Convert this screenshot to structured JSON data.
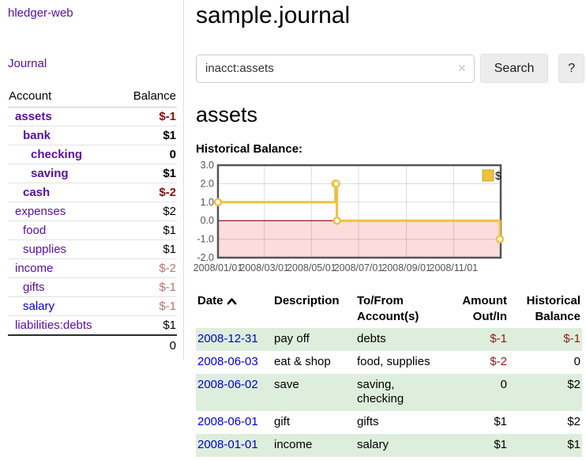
{
  "app": {
    "title": "hledger-web"
  },
  "sidebar": {
    "journal_link": "Journal",
    "accounts_table": {
      "headers": {
        "account": "Account",
        "balance": "Balance"
      },
      "rows": [
        {
          "name": "assets",
          "indent": 1,
          "bold": true,
          "balance": "$-1",
          "balance_style": "neg-strong"
        },
        {
          "name": "bank",
          "indent": 2,
          "bold": true,
          "balance": "$1",
          "balance_style": "pos"
        },
        {
          "name": "checking",
          "indent": 3,
          "bold": true,
          "balance": "0",
          "balance_style": "pos"
        },
        {
          "name": "saving",
          "indent": 3,
          "bold": true,
          "balance": "$1",
          "balance_style": "pos"
        },
        {
          "name": "cash",
          "indent": 2,
          "bold": true,
          "balance": "$-2",
          "balance_style": "neg-strong"
        },
        {
          "name": "expenses",
          "indent": 1,
          "bold": false,
          "balance": "$2",
          "balance_style": "pos"
        },
        {
          "name": "food",
          "indent": 2,
          "bold": false,
          "balance": "$1",
          "balance_style": "pos"
        },
        {
          "name": "supplies",
          "indent": 2,
          "bold": false,
          "balance": "$1",
          "balance_style": "pos"
        },
        {
          "name": "income",
          "indent": 1,
          "bold": false,
          "balance": "$-2",
          "balance_style": "neg-soft"
        },
        {
          "name": "gifts",
          "indent": 2,
          "bold": false,
          "balance": "$-1",
          "balance_style": "neg-soft"
        },
        {
          "name": "salary",
          "indent": 2,
          "bold": false,
          "link_color": "blue",
          "balance": "$-1",
          "balance_style": "neg-soft"
        },
        {
          "name": "liabilities:debts",
          "indent": 1,
          "bold": false,
          "balance": "$1",
          "balance_style": "pos"
        }
      ],
      "total": "0"
    }
  },
  "header": {
    "title": "sample.journal"
  },
  "search": {
    "value": "inacct:assets",
    "button_label": "Search",
    "help_label": "?"
  },
  "icons": {
    "clear_search": "✕",
    "sort_ascending": "chevron-up"
  },
  "account_page": {
    "heading": "assets",
    "chart_label": "Historical Balance:"
  },
  "chart_data": {
    "type": "line",
    "style": "step-after",
    "title": "Historical Balance",
    "series": [
      {
        "name": "$",
        "color": "#edc240",
        "points": [
          {
            "date": "2008-01-01",
            "x": 0,
            "y": 1
          },
          {
            "date": "2008-06-01",
            "x": 152,
            "y": 2
          },
          {
            "date": "2008-06-02",
            "x": 153,
            "y": 2
          },
          {
            "date": "2008-06-03",
            "x": 154,
            "y": 0
          },
          {
            "date": "2008-12-31",
            "x": 365,
            "y": -1
          }
        ]
      }
    ],
    "x_range": [
      0,
      366
    ],
    "x_ticks": [
      {
        "pos": 0,
        "label": "2008/01/01"
      },
      {
        "pos": 60,
        "label": "2008/03/01"
      },
      {
        "pos": 121,
        "label": "2008/05/01"
      },
      {
        "pos": 182,
        "label": "2008/07/01"
      },
      {
        "pos": 244,
        "label": "2008/09/01"
      },
      {
        "pos": 305,
        "label": "2008/11/01"
      }
    ],
    "ylim": [
      -2,
      3
    ],
    "y_ticks": [
      "3.0",
      "2.0",
      "1.0",
      "0.0",
      "-1.0",
      "-2.0"
    ],
    "legend": {
      "label": "$",
      "position": "top-right"
    },
    "grid": true,
    "negative_region_color": "#fcdcdc",
    "zero_line_color": "#8b0000",
    "frame_color": "#545454"
  },
  "register_table": {
    "headers": {
      "date": "Date",
      "description": "Description",
      "accounts": "To/From Account(s)",
      "amount": "Amount Out/In",
      "balance": "Historical Balance"
    },
    "rows": [
      {
        "date": "2008-12-31",
        "description": "pay off",
        "accounts": "debts",
        "amount": "$-1",
        "amount_neg": true,
        "balance": "$-1",
        "balance_neg": true
      },
      {
        "date": "2008-06-03",
        "description": "eat & shop",
        "accounts": "food, supplies",
        "amount": "$-2",
        "amount_neg": true,
        "balance": "0",
        "balance_neg": false
      },
      {
        "date": "2008-06-02",
        "description": "save",
        "accounts": "saving,\nchecking",
        "amount": "0",
        "amount_neg": false,
        "balance": "$2",
        "balance_neg": false
      },
      {
        "date": "2008-06-01",
        "description": "gift",
        "accounts": "gifts",
        "amount": "$1",
        "amount_neg": false,
        "balance": "$2",
        "balance_neg": false
      },
      {
        "date": "2008-01-01",
        "description": "income",
        "accounts": "salary",
        "amount": "$1",
        "amount_neg": false,
        "balance": "$1",
        "balance_neg": false
      }
    ]
  }
}
